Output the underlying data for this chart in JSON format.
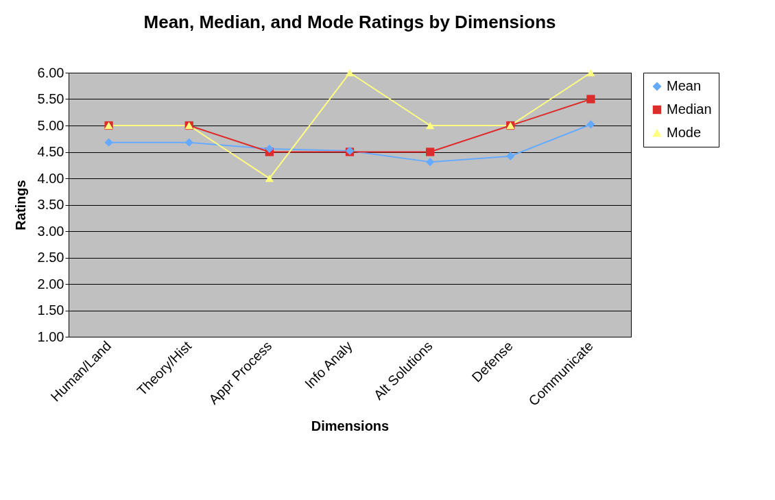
{
  "chart_data": {
    "type": "line",
    "title": "Mean, Median, and Mode Ratings by Dimensions",
    "xlabel": "Dimensions",
    "ylabel": "Ratings",
    "categories": [
      "Human/Land",
      "Theory/Hist",
      "Appr Process",
      "Info Analy",
      "Alt Solutions",
      "Defense",
      "Communicate"
    ],
    "series": [
      {
        "name": "Mean",
        "color": "#66aaff",
        "marker": "diamond",
        "values": [
          4.68,
          4.68,
          4.56,
          4.52,
          4.31,
          4.42,
          5.02
        ]
      },
      {
        "name": "Median",
        "color": "#dd2c2c",
        "marker": "square",
        "values": [
          5,
          5,
          4.5,
          4.5,
          4.5,
          5,
          5.5
        ]
      },
      {
        "name": "Mode",
        "color": "#ffff80",
        "marker": "triangle",
        "values": [
          5,
          5,
          4,
          6,
          5,
          5,
          6
        ]
      }
    ],
    "ylim": [
      1,
      6
    ],
    "yticks": [
      {
        "value": 1,
        "label": "1.00"
      },
      {
        "value": 1.5,
        "label": "1.50"
      },
      {
        "value": 2,
        "label": "2.00"
      },
      {
        "value": 2.5,
        "label": "2.50"
      },
      {
        "value": 3,
        "label": "3.00"
      },
      {
        "value": 3.5,
        "label": "3.50"
      },
      {
        "value": 4,
        "label": "4.00"
      },
      {
        "value": 4.5,
        "label": "4.50"
      },
      {
        "value": 5,
        "label": "5.00"
      },
      {
        "value": 5.5,
        "label": "5.50"
      },
      {
        "value": 6,
        "label": "6.00"
      }
    ],
    "grid": "y",
    "legend": "right"
  }
}
